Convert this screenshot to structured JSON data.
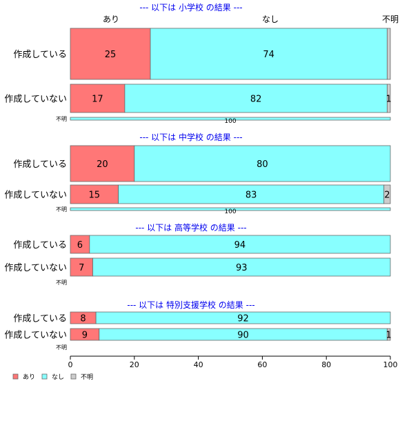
{
  "chart_data": {
    "type": "bar",
    "stacked": true,
    "orientation": "horizontal",
    "x_ticks": [
      0,
      20,
      40,
      60,
      80,
      100
    ],
    "xlim": [
      0,
      100
    ],
    "column_labels": [
      "あり",
      "なし",
      "不明"
    ],
    "series": [
      {
        "name": "あり",
        "color": "#FF7777"
      },
      {
        "name": "なし",
        "color": "#88FFFF"
      },
      {
        "name": "不明",
        "color": "#CCCCCC"
      }
    ],
    "legend_position": "bottom-left",
    "panels": [
      {
        "title": "--- 以下は 小学校 の結果 ---",
        "rows": [
          {
            "label": "作成している",
            "values": [
              25,
              74,
              1
            ],
            "labels": [
              "25",
              "74",
              ""
            ]
          },
          {
            "label": "作成していない",
            "values": [
              17,
              82,
              1
            ],
            "labels": [
              "17",
              "82",
              "1"
            ]
          },
          {
            "label": "不明",
            "values": [
              0,
              100,
              0
            ],
            "labels": [
              "",
              "100",
              ""
            ]
          }
        ]
      },
      {
        "title": "--- 以下は 中学校 の結果 ---",
        "rows": [
          {
            "label": "作成している",
            "values": [
              20,
              80,
              0
            ],
            "labels": [
              "20",
              "80",
              ""
            ]
          },
          {
            "label": "作成していない",
            "values": [
              15,
              83,
              2
            ],
            "labels": [
              "15",
              "83",
              "2"
            ]
          },
          {
            "label": "不明",
            "values": [
              0,
              100,
              0
            ],
            "labels": [
              "",
              "100",
              ""
            ]
          }
        ]
      },
      {
        "title": "--- 以下は 高等学校 の結果 ---",
        "rows": [
          {
            "label": "作成している",
            "values": [
              6,
              94,
              0
            ],
            "labels": [
              "6",
              "94",
              ""
            ]
          },
          {
            "label": "作成していない",
            "values": [
              7,
              93,
              0
            ],
            "labels": [
              "7",
              "93",
              ""
            ]
          },
          {
            "label": "不明",
            "values": [],
            "labels": []
          }
        ]
      },
      {
        "title": "--- 以下は 特別支援学校 の結果 ---",
        "rows": [
          {
            "label": "作成している",
            "values": [
              8,
              92,
              0
            ],
            "labels": [
              "8",
              "92",
              ""
            ]
          },
          {
            "label": "作成していない",
            "values": [
              9,
              90,
              1
            ],
            "labels": [
              "9",
              "90",
              "1"
            ]
          },
          {
            "label": "不明",
            "values": [],
            "labels": []
          }
        ]
      }
    ]
  }
}
